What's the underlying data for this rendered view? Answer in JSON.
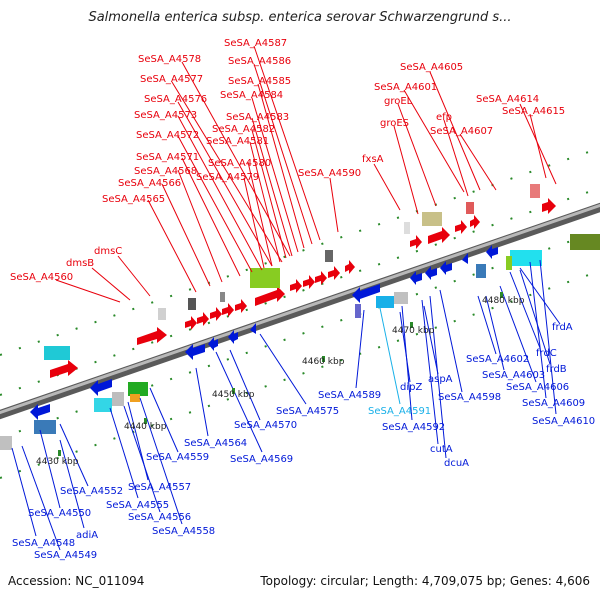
{
  "title": "Salmonella enterica subsp. enterica serovar Schwarzengrund s...",
  "footer": {
    "accession": "Accession: NC_011094",
    "summary": "Topology: circular; Length: 4,709,075 bp; Genes: 4,606"
  },
  "colors": {
    "forward": "#e8000c",
    "reverse": "#0018d8",
    "highlight": "#19b0e8",
    "backbone": "#8a8a8a"
  },
  "ticks": [
    "4430 kbp",
    "4440 kbp",
    "4450 kbp",
    "4460 kbp",
    "4470 kbp",
    "4480 kbp"
  ],
  "forward_labels": [
    "SeSA_A4587",
    "SeSA_A4586",
    "SeSA_A4578",
    "SeSA_A4585",
    "SeSA_A4577",
    "SeSA_A4584",
    "SeSA_A4576",
    "SeSA_A4573",
    "SeSA_A4583",
    "SeSA_A4582",
    "SeSA_A4572",
    "SeSA_A4581",
    "SeSA_A4571",
    "SeSA_A4580",
    "SeSA_A4568",
    "SeSA_A4579",
    "SeSA_A4566",
    "SeSA_A4590",
    "SeSA_A4565",
    "dmsC",
    "dmsB",
    "SeSA_A4560",
    "SeSA_A4605",
    "SeSA_A4601",
    "groEL",
    "efp",
    "SeSA_A4614",
    "SeSA_A4615",
    "groES",
    "SeSA_A4607",
    "fxsA"
  ],
  "reverse_labels": [
    "frdA",
    "SeSA_A4602",
    "frdC",
    "SeSA_A4603",
    "frdB",
    "SeSA_A4606",
    "SeSA_A4609",
    "SeSA_A4610",
    "aspA",
    "SeSA_A4598",
    "dipZ",
    "SeSA_A4589",
    "SeSA_A4591",
    "SeSA_A4592",
    "cutA",
    "dcuA",
    "SeSA_A4575",
    "SeSA_A4570",
    "SeSA_A4569",
    "SeSA_A4564",
    "SeSA_A4559",
    "SeSA_A4557",
    "SeSA_A4555",
    "SeSA_A4556",
    "SeSA_A4558",
    "SeSA_A4552",
    "SeSA_A4550",
    "adiA",
    "SeSA_A4548",
    "SeSA_A4549"
  ]
}
